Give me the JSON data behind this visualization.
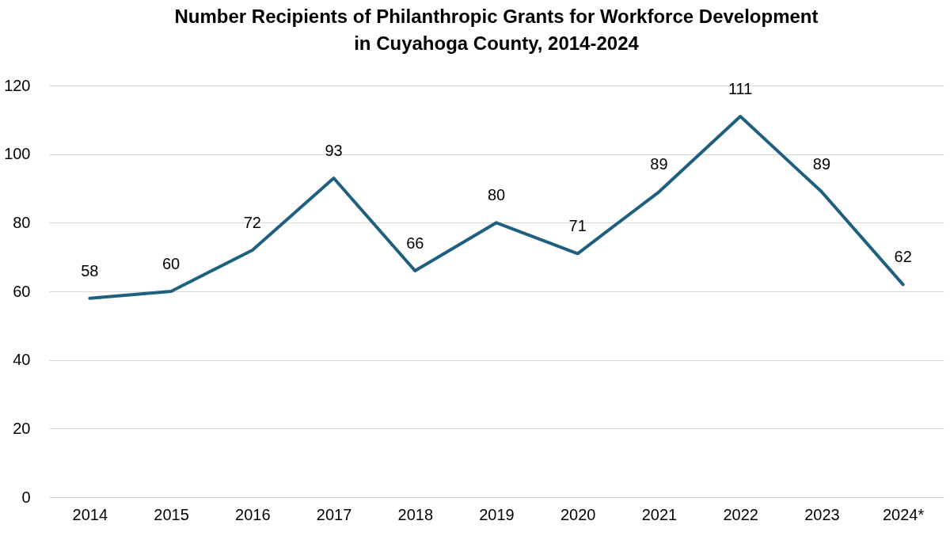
{
  "chart_data": {
    "type": "line",
    "title": "Number Recipients of Philanthropic Grants for Workforce Development\nin Cuyahoga County, 2014-2024",
    "categories": [
      "2014",
      "2015",
      "2016",
      "2017",
      "2018",
      "2019",
      "2020",
      "2021",
      "2022",
      "2023",
      "2024*"
    ],
    "series": [
      {
        "color": "#1f5f7f",
        "values": [
          58,
          60,
          72,
          93,
          66,
          80,
          71,
          89,
          111,
          89,
          62
        ]
      }
    ],
    "ylim": [
      0,
      120
    ],
    "yticks": [
      0,
      20,
      40,
      60,
      80,
      100,
      120
    ],
    "grid": "y",
    "data_labels": true,
    "legend": false,
    "marker": "none",
    "line_style": "solid"
  }
}
